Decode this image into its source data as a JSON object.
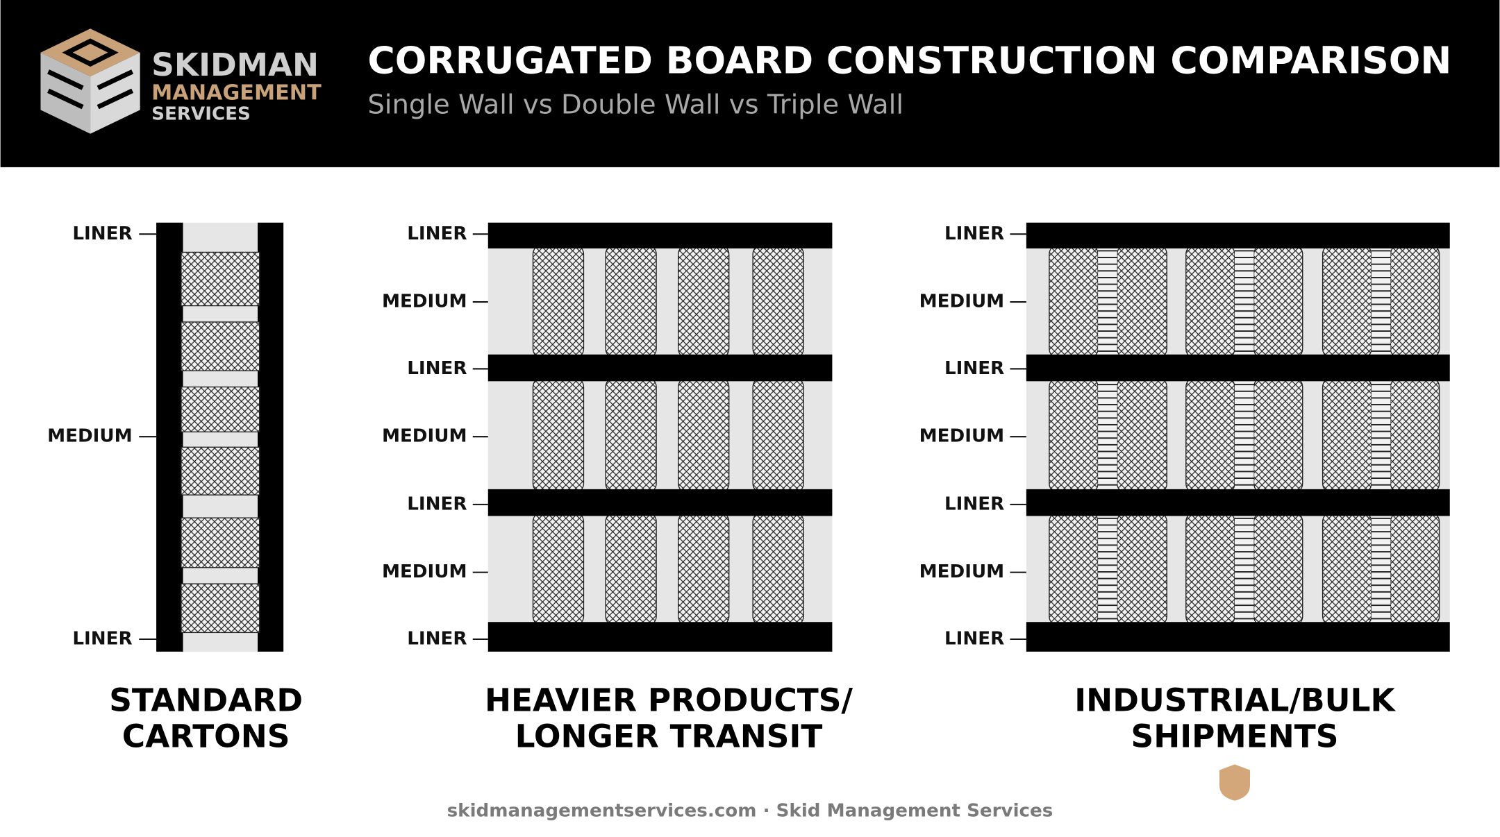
{
  "logo": {
    "line1": "SKIDMAN",
    "line2": "MANAGEMENT",
    "line3": "SERVICES"
  },
  "header": {
    "title": "CORRUGATED BOARD CONSTRUCTION COMPARISON",
    "subtitle": "Single Wall vs Double Wall vs Triple Wall"
  },
  "panels": [
    {
      "labels": [
        "LINER",
        "MEDIUM",
        "LINER"
      ],
      "caption": [
        "STANDARD",
        "CARTONS"
      ]
    },
    {
      "labels": [
        "LINER",
        "MEDIUM",
        "LINER",
        "MEDIUM",
        "LINER",
        "MEDIUM",
        "LINER"
      ],
      "caption": [
        "HEAVIER PRODUCTS/",
        "LONGER TRANSIT"
      ]
    },
    {
      "labels": [
        "LINER",
        "MEDIUM",
        "LINER",
        "MEDIUM",
        "LINER",
        "MEDIUM",
        "LINER"
      ],
      "caption": [
        "INDUSTRIAL/BULK",
        "SHIPMENTS"
      ]
    }
  ],
  "footer": "skidmanagementservices.com · Skid Management Services"
}
